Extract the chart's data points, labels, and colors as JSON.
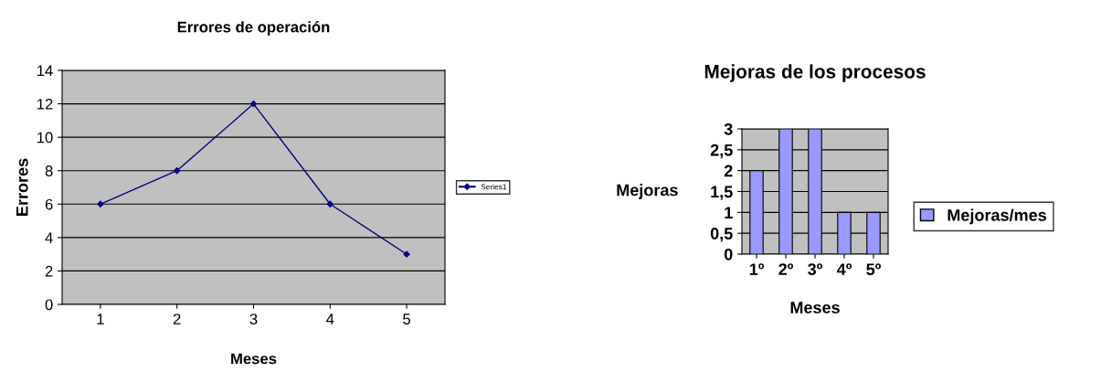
{
  "chart_data": [
    {
      "type": "line",
      "title": "Errores de operación",
      "xlabel": "Meses",
      "ylabel": "Errores",
      "categories": [
        "1",
        "2",
        "3",
        "4",
        "5"
      ],
      "series": [
        {
          "name": "Series1",
          "color": "#000080",
          "values": [
            6,
            8,
            12,
            6,
            3
          ]
        }
      ],
      "ylim": [
        0,
        14
      ],
      "yticks": [
        0,
        2,
        4,
        6,
        8,
        10,
        12,
        14
      ],
      "grid": "y",
      "legend": "right",
      "marker": "diamond",
      "line_style": "solid"
    },
    {
      "type": "bar",
      "title": "Mejoras de los procesos",
      "xlabel": "Meses",
      "ylabel": "Mejoras",
      "categories": [
        "1º",
        "2º",
        "3º",
        "4º",
        "5º"
      ],
      "series": [
        {
          "name": "Mejoras/mes",
          "color": "#9999ff",
          "values": [
            2,
            3,
            3,
            1,
            1
          ]
        }
      ],
      "ylim": [
        0,
        3
      ],
      "yticks": [
        0,
        {
          "value": 0.5,
          "label": "0,5"
        },
        1,
        {
          "value": 1.5,
          "label": "1,5"
        },
        2,
        {
          "value": 2.5,
          "label": "2,5"
        },
        3
      ],
      "grid": "y",
      "legend": "right"
    }
  ]
}
